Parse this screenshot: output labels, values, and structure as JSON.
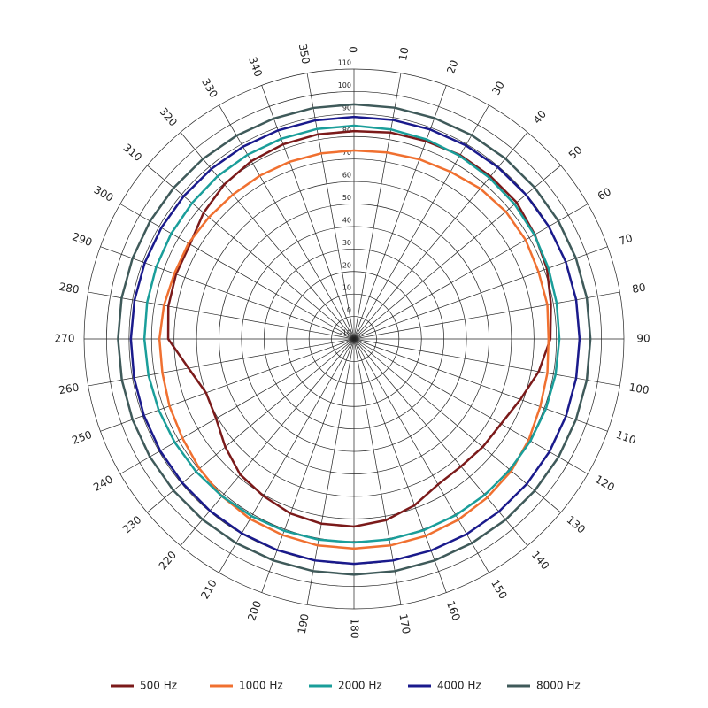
{
  "chart_data": {
    "type": "polar",
    "theta": [
      0,
      10,
      20,
      30,
      40,
      50,
      60,
      70,
      80,
      90,
      100,
      110,
      120,
      130,
      140,
      150,
      160,
      170,
      180,
      190,
      200,
      210,
      220,
      230,
      240,
      250,
      260,
      270,
      280,
      290,
      300,
      310,
      320,
      330,
      340,
      350
    ],
    "xticks": [
      0,
      10,
      20,
      30,
      40,
      50,
      60,
      70,
      80,
      90,
      100,
      110,
      120,
      130,
      140,
      150,
      160,
      170,
      180,
      190,
      200,
      210,
      220,
      230,
      240,
      250,
      260,
      270,
      280,
      290,
      300,
      310,
      320,
      330,
      340,
      350
    ],
    "rlim": [
      -10,
      110
    ],
    "rticks": [
      -10,
      0,
      10,
      20,
      30,
      40,
      50,
      60,
      70,
      80,
      90,
      100,
      110
    ],
    "grid": true,
    "legend": "bottom",
    "series": [
      {
        "name": "500 Hz",
        "color": "#7b1a1a",
        "values": [
          82.4,
          83.2,
          83.6,
          84.4,
          84.4,
          84.4,
          82.8,
          81.3,
          78.9,
          77.3,
          73.4,
          68.7,
          65.5,
          64.7,
          64.0,
          64.7,
          68.7,
          71.8,
          73.4,
          73.4,
          72.6,
          70.6,
          68.7,
          64.7,
          60.8,
          60.0,
          64.7,
          72.6,
          73.8,
          74.2,
          74.2,
          77.3,
          79.7,
          81.3,
          82.1,
          82.4
        ]
      },
      {
        "name": "1000 Hz",
        "color": "#f07030",
        "values": [
          73.8,
          74.2,
          75.0,
          75.8,
          77.3,
          78.1,
          78.1,
          77.3,
          77.3,
          76.5,
          77.3,
          78.1,
          79.7,
          81.3,
          82.1,
          82.8,
          83.2,
          83.2,
          83.2,
          83.2,
          82.8,
          82.4,
          81.3,
          79.7,
          78.1,
          77.3,
          76.5,
          76.5,
          75.8,
          75.0,
          75.0,
          74.2,
          73.8,
          73.8,
          73.8,
          73.8
        ]
      },
      {
        "name": "2000 Hz",
        "color": "#1a9e9a",
        "values": [
          84.8,
          84.6,
          84.4,
          84.0,
          83.6,
          83.2,
          82.6,
          82.0,
          81.5,
          81.3,
          81.0,
          80.8,
          80.6,
          80.5,
          80.5,
          80.5,
          80.5,
          80.5,
          80.5,
          80.6,
          80.8,
          81.0,
          81.3,
          81.7,
          82.0,
          82.4,
          82.8,
          83.2,
          83.4,
          83.6,
          83.8,
          84.0,
          84.4,
          84.6,
          84.7,
          84.8
        ]
      },
      {
        "name": "4000 Hz",
        "color": "#1a1a8c",
        "values": [
          88.7,
          88.9,
          89.1,
          89.4,
          89.6,
          89.8,
          90.0,
          90.2,
          90.3,
          90.3,
          90.3,
          90.3,
          90.3,
          90.3,
          90.2,
          90.2,
          90.1,
          90.0,
          90.0,
          90.0,
          89.9,
          89.8,
          89.7,
          89.6,
          89.5,
          89.4,
          89.3,
          89.2,
          89.1,
          89.0,
          88.9,
          88.8,
          88.7,
          88.7,
          88.7,
          88.7
        ]
      },
      {
        "name": "8000 Hz",
        "color": "#3f5a5a",
        "values": [
          94.3,
          94.4,
          94.5,
          94.6,
          94.7,
          94.8,
          94.9,
          95.0,
          95.1,
          95.1,
          95.1,
          95.0,
          95.0,
          94.9,
          94.9,
          94.8,
          94.8,
          94.8,
          94.8,
          94.8,
          94.8,
          94.8,
          94.8,
          94.8,
          94.8,
          94.8,
          94.8,
          94.9,
          94.9,
          94.8,
          94.7,
          94.6,
          94.5,
          94.4,
          94.3,
          94.3
        ]
      }
    ]
  }
}
